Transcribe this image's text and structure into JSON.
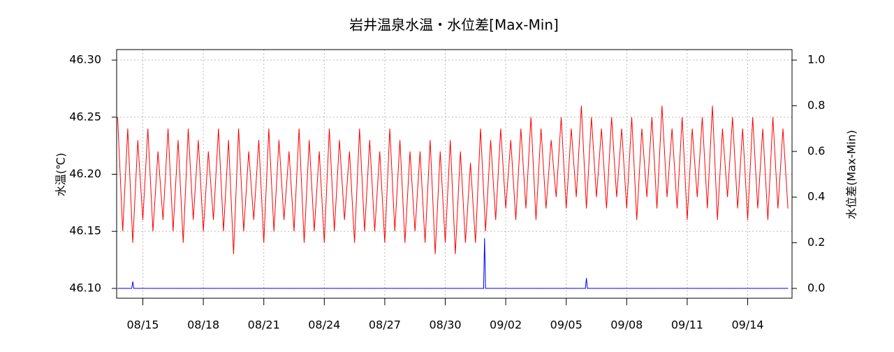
{
  "chart_data": {
    "type": "line",
    "title": "岩井温泉水温・水位差[Max-Min]",
    "y_label": "水温(℃)",
    "y2_label": "水位差(Max-Min)",
    "xlim": [
      225.7,
      259.2
    ],
    "xticks": [
      {
        "value": 227,
        "label": "08/15"
      },
      {
        "value": 230,
        "label": "08/18"
      },
      {
        "value": 233,
        "label": "08/21"
      },
      {
        "value": 236,
        "label": "08/24"
      },
      {
        "value": 239,
        "label": "08/27"
      },
      {
        "value": 242,
        "label": "08/30"
      },
      {
        "value": 245,
        "label": "09/02"
      },
      {
        "value": 248,
        "label": "09/05"
      },
      {
        "value": 251,
        "label": "09/08"
      },
      {
        "value": 254,
        "label": "09/11"
      },
      {
        "value": 257,
        "label": "09/14"
      }
    ],
    "ylim": [
      46.0914,
      46.3092
    ],
    "yticks": [
      {
        "value": 46.1,
        "label": "46.10"
      },
      46.15,
      {
        "value": 46.2,
        "label": "46.20"
      },
      46.25,
      {
        "value": 46.3,
        "label": "46.30"
      }
    ],
    "y2lim": [
      -0.043,
      1.046
    ],
    "y2ticks": [
      {
        "value": 0,
        "label": "0.0"
      },
      0.2,
      0.4,
      0.6,
      0.8,
      {
        "value": 1,
        "label": "1.0"
      }
    ],
    "grid": true,
    "series": [
      {
        "name": "水温",
        "color": "#ff0000",
        "x": [
          225.75,
          226,
          226.25,
          226.5,
          226.75,
          227,
          227.25,
          227.5,
          227.75,
          228,
          228.25,
          228.5,
          228.75,
          229,
          229.25,
          229.5,
          229.75,
          230,
          230.25,
          230.5,
          230.75,
          231,
          231.25,
          231.5,
          231.75,
          232,
          232.25,
          232.5,
          232.75,
          233,
          233.25,
          233.5,
          233.75,
          234,
          234.25,
          234.5,
          234.75,
          235,
          235.25,
          235.5,
          235.75,
          236,
          236.25,
          236.5,
          236.75,
          237,
          237.25,
          237.5,
          237.75,
          238,
          238.25,
          238.5,
          238.75,
          239,
          239.25,
          239.5,
          239.75,
          240,
          240.25,
          240.5,
          240.75,
          241,
          241.25,
          241.5,
          241.75,
          242,
          242.25,
          242.5,
          242.75,
          243,
          243.25,
          243.5,
          243.75,
          244,
          244.25,
          244.5,
          244.75,
          245,
          245.25,
          245.5,
          245.75,
          246,
          246.25,
          246.5,
          246.75,
          247,
          247.25,
          247.5,
          247.75,
          248,
          248.25,
          248.5,
          248.75,
          249,
          249.25,
          249.5,
          249.75,
          250,
          250.25,
          250.5,
          250.75,
          251,
          251.25,
          251.5,
          251.75,
          252,
          252.25,
          252.5,
          252.75,
          253,
          253.25,
          253.5,
          253.75,
          254,
          254.25,
          254.5,
          254.75,
          255,
          255.25,
          255.5,
          255.75,
          256,
          256.25,
          256.5,
          256.75,
          257,
          257.25,
          257.5,
          257.75,
          258,
          258.25,
          258.5,
          258.75,
          259
        ],
        "values": [
          46.25,
          46.15,
          46.24,
          46.14,
          46.23,
          46.16,
          46.24,
          46.15,
          46.22,
          46.16,
          46.24,
          46.15,
          46.23,
          46.14,
          46.24,
          46.16,
          46.23,
          46.15,
          46.22,
          46.16,
          46.24,
          46.15,
          46.23,
          46.13,
          46.24,
          46.15,
          46.22,
          46.16,
          46.23,
          46.14,
          46.24,
          46.15,
          46.23,
          46.16,
          46.22,
          46.15,
          46.24,
          46.14,
          46.23,
          46.15,
          46.22,
          46.14,
          46.24,
          46.15,
          46.23,
          46.16,
          46.22,
          46.14,
          46.24,
          46.15,
          46.23,
          46.15,
          46.22,
          46.14,
          46.24,
          46.15,
          46.23,
          46.14,
          46.22,
          46.15,
          46.22,
          46.14,
          46.23,
          46.13,
          46.22,
          46.14,
          46.23,
          46.13,
          46.22,
          46.14,
          46.21,
          46.14,
          46.24,
          46.15,
          46.23,
          46.16,
          46.24,
          46.17,
          46.23,
          46.16,
          46.24,
          46.17,
          46.25,
          46.16,
          46.24,
          46.17,
          46.23,
          46.18,
          46.25,
          46.17,
          46.24,
          46.18,
          46.26,
          46.17,
          46.25,
          46.18,
          46.24,
          46.17,
          46.25,
          46.18,
          46.24,
          46.17,
          46.25,
          46.16,
          46.24,
          46.18,
          46.25,
          46.17,
          46.26,
          46.18,
          46.24,
          46.17,
          46.25,
          46.16,
          46.24,
          46.18,
          46.25,
          46.17,
          46.26,
          46.16,
          46.24,
          46.18,
          46.25,
          46.17,
          46.24,
          46.16,
          46.25,
          46.17,
          46.24,
          46.16,
          46.25,
          46.17,
          46.24,
          46.17
        ]
      },
      {
        "name": "水位差",
        "color": "#0000ff",
        "axis": "y2",
        "x": [
          225.75,
          226.45,
          226.5,
          226.55,
          243.9,
          243.95,
          244.0,
          248.95,
          249.0,
          249.05,
          259
        ],
        "values": [
          0,
          0,
          0.03,
          0,
          0,
          0.22,
          0,
          0,
          0.045,
          0,
          0
        ]
      }
    ]
  }
}
